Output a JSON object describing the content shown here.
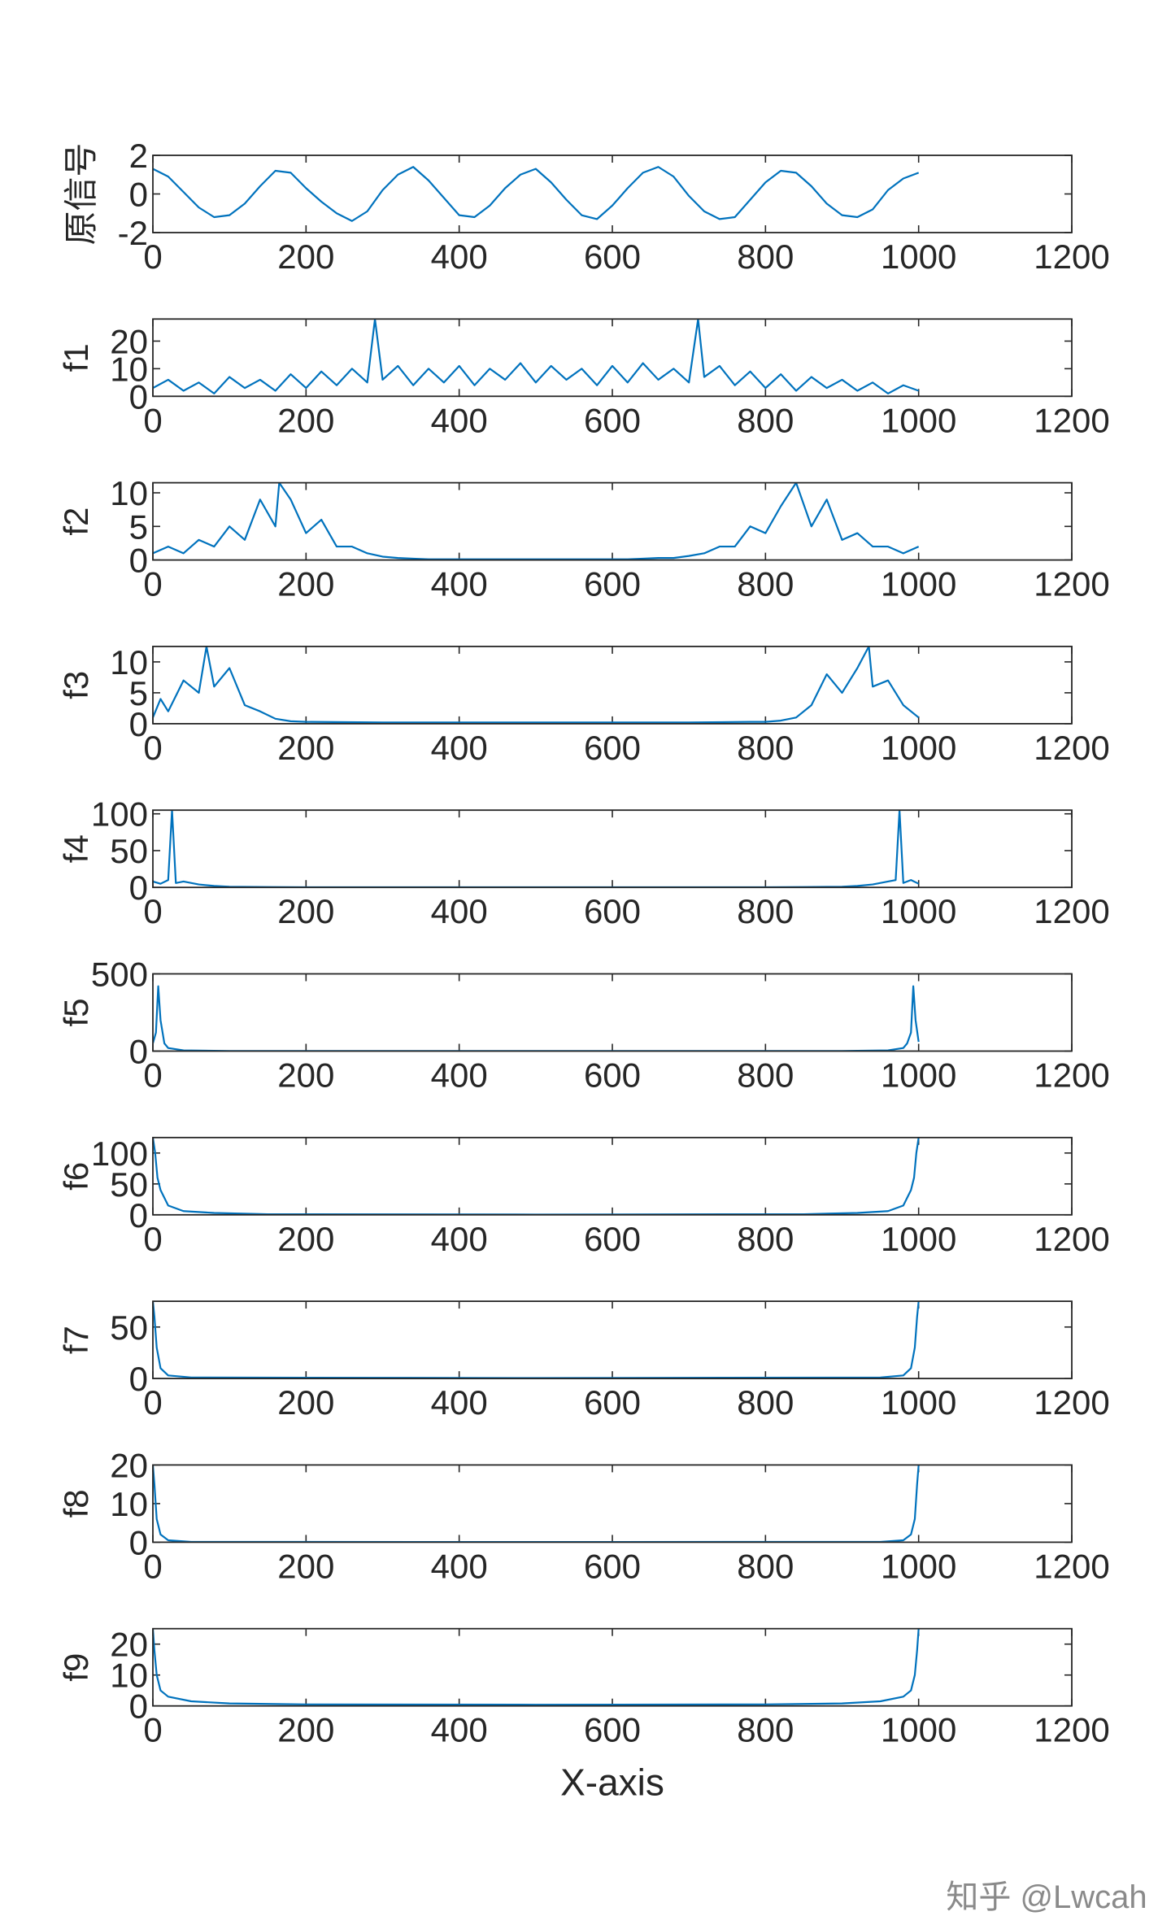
{
  "chart_data": [
    {
      "type": "line",
      "ylabel": "原信号",
      "color": "#0072bd",
      "xlim": [
        0,
        1200
      ],
      "xticks": [
        0,
        200,
        400,
        600,
        800,
        1000,
        1200
      ],
      "ylim": [
        -2,
        2
      ],
      "yticks": [
        -2,
        0,
        2
      ],
      "x": [
        0,
        20,
        40,
        60,
        80,
        100,
        120,
        140,
        160,
        180,
        200,
        220,
        240,
        260,
        280,
        300,
        320,
        340,
        360,
        380,
        400,
        420,
        440,
        460,
        480,
        500,
        520,
        540,
        560,
        580,
        600,
        620,
        640,
        660,
        680,
        700,
        720,
        740,
        760,
        780,
        800,
        820,
        840,
        860,
        880,
        900,
        920,
        940,
        960,
        980,
        1000
      ],
      "values": [
        1.3,
        0.9,
        0.1,
        -0.7,
        -1.2,
        -1.1,
        -0.5,
        0.4,
        1.2,
        1.1,
        0.3,
        -0.4,
        -1.0,
        -1.4,
        -0.9,
        0.2,
        1.0,
        1.4,
        0.7,
        -0.2,
        -1.1,
        -1.2,
        -0.6,
        0.3,
        1.0,
        1.3,
        0.6,
        -0.3,
        -1.1,
        -1.3,
        -0.6,
        0.3,
        1.1,
        1.4,
        0.9,
        -0.1,
        -0.9,
        -1.3,
        -1.2,
        -0.3,
        0.6,
        1.2,
        1.1,
        0.4,
        -0.5,
        -1.1,
        -1.2,
        -0.8,
        0.2,
        0.8,
        1.1
      ]
    },
    {
      "type": "line",
      "ylabel": "f1",
      "color": "#0072bd",
      "xlim": [
        0,
        1200
      ],
      "xticks": [
        0,
        200,
        400,
        600,
        800,
        1000,
        1200
      ],
      "ylim": [
        0,
        28
      ],
      "yticks": [
        0,
        10,
        20
      ],
      "x": [
        0,
        20,
        40,
        60,
        80,
        100,
        120,
        140,
        160,
        180,
        200,
        220,
        240,
        260,
        280,
        290,
        300,
        320,
        340,
        360,
        380,
        400,
        420,
        440,
        460,
        480,
        500,
        520,
        540,
        560,
        580,
        600,
        620,
        640,
        660,
        680,
        700,
        712,
        720,
        740,
        760,
        780,
        800,
        820,
        840,
        860,
        880,
        900,
        920,
        940,
        960,
        980,
        1000
      ],
      "values": [
        3,
        6,
        2,
        5,
        1,
        7,
        3,
        6,
        2,
        8,
        3,
        9,
        4,
        10,
        5,
        28,
        6,
        11,
        4,
        10,
        5,
        11,
        4,
        10,
        6,
        12,
        5,
        11,
        6,
        10,
        4,
        11,
        5,
        12,
        6,
        10,
        5,
        28,
        7,
        11,
        4,
        9,
        3,
        8,
        2,
        7,
        3,
        6,
        2,
        5,
        1,
        4,
        2
      ]
    },
    {
      "type": "line",
      "ylabel": "f2",
      "color": "#0072bd",
      "xlim": [
        0,
        1200
      ],
      "xticks": [
        0,
        200,
        400,
        600,
        800,
        1000,
        1200
      ],
      "ylim": [
        0,
        11.5
      ],
      "yticks": [
        0,
        5,
        10
      ],
      "x": [
        0,
        20,
        40,
        60,
        80,
        100,
        120,
        140,
        160,
        165,
        180,
        200,
        220,
        240,
        260,
        280,
        300,
        320,
        340,
        360,
        380,
        400,
        420,
        440,
        460,
        480,
        500,
        520,
        540,
        560,
        580,
        600,
        620,
        640,
        660,
        680,
        700,
        720,
        740,
        760,
        780,
        800,
        820,
        840,
        860,
        880,
        900,
        920,
        940,
        960,
        980,
        1000
      ],
      "values": [
        1,
        2,
        1,
        3,
        2,
        5,
        3,
        9,
        5,
        11.5,
        9,
        4,
        6,
        2,
        2,
        1,
        0.5,
        0.3,
        0.2,
        0.1,
        0.1,
        0.1,
        0.1,
        0.1,
        0.1,
        0.1,
        0.1,
        0.1,
        0.1,
        0.1,
        0.1,
        0.1,
        0.1,
        0.2,
        0.3,
        0.3,
        0.6,
        1,
        2,
        2,
        5,
        4,
        8,
        11.5,
        5,
        9,
        3,
        4,
        2,
        2,
        1,
        2
      ]
    },
    {
      "type": "line",
      "ylabel": "f3",
      "color": "#0072bd",
      "xlim": [
        0,
        1200
      ],
      "xticks": [
        0,
        200,
        400,
        600,
        800,
        1000,
        1200
      ],
      "ylim": [
        0,
        12.5
      ],
      "yticks": [
        0,
        5,
        10
      ],
      "x": [
        0,
        10,
        20,
        40,
        60,
        70,
        80,
        100,
        120,
        140,
        160,
        180,
        200,
        300,
        400,
        500,
        600,
        700,
        780,
        800,
        820,
        840,
        860,
        880,
        900,
        920,
        935,
        940,
        960,
        980,
        1000
      ],
      "values": [
        1,
        4,
        2,
        7,
        5,
        12.5,
        6,
        9,
        3,
        2,
        0.8,
        0.4,
        0.3,
        0.2,
        0.2,
        0.2,
        0.2,
        0.2,
        0.3,
        0.3,
        0.5,
        1,
        3,
        8,
        5,
        9,
        12.5,
        6,
        7,
        3,
        1
      ]
    },
    {
      "type": "line",
      "ylabel": "f4",
      "color": "#0072bd",
      "xlim": [
        0,
        1200
      ],
      "xticks": [
        0,
        200,
        400,
        600,
        800,
        1000,
        1200
      ],
      "ylim": [
        0,
        105
      ],
      "yticks": [
        0,
        50,
        100
      ],
      "x": [
        0,
        10,
        20,
        25,
        30,
        40,
        60,
        80,
        100,
        150,
        200,
        400,
        600,
        800,
        850,
        900,
        920,
        940,
        960,
        970,
        975,
        980,
        990,
        1000
      ],
      "values": [
        8,
        5,
        10,
        105,
        6,
        8,
        4,
        2,
        1,
        0.5,
        0.2,
        0.2,
        0.2,
        0.2,
        0.5,
        1,
        2,
        4,
        8,
        10,
        105,
        6,
        10,
        5
      ]
    },
    {
      "type": "line",
      "ylabel": "f5",
      "color": "#0072bd",
      "xlim": [
        0,
        1200
      ],
      "xticks": [
        0,
        200,
        400,
        600,
        800,
        1000,
        1200
      ],
      "ylim": [
        0,
        500
      ],
      "yticks": [
        0,
        500
      ],
      "x": [
        0,
        4,
        7,
        10,
        15,
        20,
        40,
        100,
        500,
        900,
        960,
        980,
        985,
        990,
        993,
        996,
        1000
      ],
      "values": [
        50,
        120,
        420,
        200,
        50,
        20,
        5,
        1,
        0.5,
        1,
        5,
        20,
        50,
        120,
        420,
        200,
        60
      ]
    },
    {
      "type": "line",
      "ylabel": "f6",
      "color": "#0072bd",
      "xlim": [
        0,
        1200
      ],
      "xticks": [
        0,
        200,
        400,
        600,
        800,
        1000,
        1200
      ],
      "ylim": [
        0,
        125
      ],
      "yticks": [
        0,
        50,
        100
      ],
      "x": [
        0,
        3,
        6,
        10,
        20,
        40,
        80,
        150,
        500,
        850,
        920,
        960,
        980,
        990,
        994,
        997,
        1000
      ],
      "values": [
        125,
        100,
        60,
        40,
        15,
        6,
        3,
        1,
        0.5,
        1,
        3,
        6,
        15,
        40,
        60,
        100,
        125
      ]
    },
    {
      "type": "line",
      "ylabel": "f7",
      "color": "#0072bd",
      "xlim": [
        0,
        1200
      ],
      "xticks": [
        0,
        200,
        400,
        600,
        800,
        1000,
        1200
      ],
      "ylim": [
        0,
        75
      ],
      "yticks": [
        0,
        50
      ],
      "x": [
        0,
        2,
        5,
        10,
        20,
        50,
        500,
        950,
        980,
        990,
        995,
        998,
        1000
      ],
      "values": [
        75,
        60,
        30,
        10,
        3,
        1,
        0.5,
        1,
        3,
        10,
        30,
        60,
        75
      ]
    },
    {
      "type": "line",
      "ylabel": "f8",
      "color": "#0072bd",
      "xlim": [
        0,
        1200
      ],
      "xticks": [
        0,
        200,
        400,
        600,
        800,
        1000,
        1200
      ],
      "ylim": [
        0,
        20
      ],
      "yticks": [
        0,
        10,
        20
      ],
      "x": [
        0,
        2,
        5,
        10,
        20,
        50,
        500,
        950,
        980,
        990,
        995,
        998,
        1000
      ],
      "values": [
        20,
        15,
        6,
        2,
        0.5,
        0.1,
        0.05,
        0.1,
        0.5,
        2,
        6,
        15,
        20
      ]
    },
    {
      "type": "line",
      "ylabel": "f9",
      "xlabel": "X-axis",
      "color": "#0072bd",
      "xlim": [
        0,
        1200
      ],
      "xticks": [
        0,
        200,
        400,
        600,
        800,
        1000,
        1200
      ],
      "ylim": [
        0,
        25
      ],
      "yticks": [
        0,
        10,
        20
      ],
      "x": [
        0,
        2,
        5,
        10,
        20,
        50,
        100,
        200,
        500,
        800,
        900,
        950,
        980,
        990,
        995,
        998,
        1000
      ],
      "values": [
        25,
        18,
        10,
        5,
        3,
        1.5,
        0.8,
        0.5,
        0.4,
        0.5,
        0.8,
        1.5,
        3,
        5,
        10,
        18,
        25
      ]
    }
  ],
  "watermark": "知乎 @Lwcah"
}
